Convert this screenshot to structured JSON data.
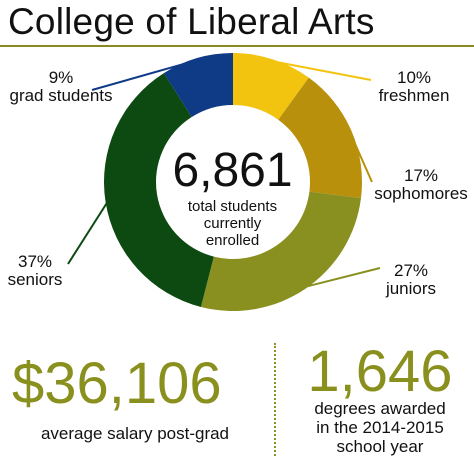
{
  "title": "College of Liberal Arts",
  "colors": {
    "freshmen": "#f2c40f",
    "sophomores": "#b8900c",
    "juniors": "#8a9020",
    "seniors": "#0d4a12",
    "grad_students": "#0f3a85",
    "accent": "#8a901e"
  },
  "chart_data": {
    "type": "pie",
    "variant": "donut",
    "slices": [
      {
        "label": "freshmen",
        "percent_label": "10%",
        "value": 10,
        "color": "#f2c40f"
      },
      {
        "label": "sophomores",
        "percent_label": "17%",
        "value": 17,
        "color": "#b8900c"
      },
      {
        "label": "juniors",
        "percent_label": "27%",
        "value": 27,
        "color": "#8a9020"
      },
      {
        "label": "seniors",
        "percent_label": "37%",
        "value": 37,
        "color": "#0d4a12"
      },
      {
        "label": "grad students",
        "percent_label": "9%",
        "value": 9,
        "color": "#0f3a85"
      }
    ],
    "center_value": "6,861",
    "center_lines": [
      "total students",
      "currently",
      "enrolled"
    ]
  },
  "stats": {
    "salary": {
      "value": "$36,106",
      "caption": "average salary post-grad"
    },
    "degrees": {
      "value": "1,646",
      "caption_lines": [
        "degrees awarded",
        "in the 2014-2015",
        "school year"
      ]
    }
  }
}
